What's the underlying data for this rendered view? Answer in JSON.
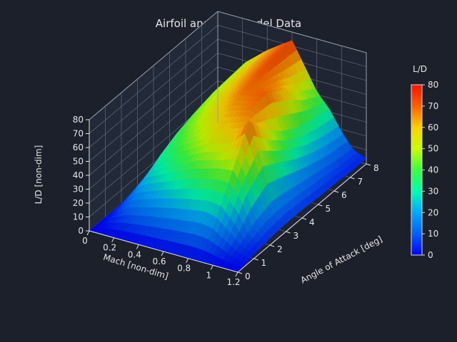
{
  "chart_data": {
    "type": "surface3d",
    "title": "Airfoil and Stall Model Data",
    "xlabel": "Mach [non-dim]",
    "ylabel": "Angle of Attack [deg]",
    "zlabel": "L/D [non-dim]",
    "colorbar_label": "L/D",
    "xlim": [
      0,
      1.2
    ],
    "ylim": [
      0,
      8
    ],
    "zlim": [
      0,
      80
    ],
    "x_ticks": [
      "0",
      "0.2",
      "0.4",
      "0.6",
      "0.8",
      "1",
      "1.2"
    ],
    "y_ticks": [
      "0",
      "1",
      "2",
      "3",
      "4",
      "5",
      "6",
      "7",
      "8"
    ],
    "z_ticks": [
      "0",
      "10",
      "20",
      "30",
      "40",
      "50",
      "60",
      "70",
      "80"
    ],
    "colorbar_ticks": [
      "0",
      "10",
      "20",
      "30",
      "40",
      "50",
      "60",
      "70",
      "80"
    ],
    "colormap": "jet",
    "colorbar_range": [
      0,
      80
    ],
    "mach": [
      0,
      0.2,
      0.4,
      0.6,
      0.8,
      0.9,
      1.0,
      1.1,
      1.2
    ],
    "alpha": [
      0,
      1,
      2,
      3,
      4,
      5,
      6,
      7,
      8
    ],
    "ld_values": [
      [
        0,
        0,
        0,
        0,
        0,
        0,
        0,
        0,
        0
      ],
      [
        0,
        12,
        24,
        32,
        38,
        42,
        45,
        46,
        47
      ],
      [
        0,
        17,
        32,
        43,
        51,
        56,
        59,
        61,
        62
      ],
      [
        0,
        21,
        40,
        54,
        62,
        68,
        71,
        73,
        74
      ],
      [
        0,
        24,
        45,
        60,
        68,
        70,
        62,
        50,
        42
      ],
      [
        0,
        22,
        46,
        72,
        56,
        45,
        38,
        34,
        32
      ],
      [
        0,
        14,
        34,
        46,
        38,
        30,
        24,
        20,
        18
      ],
      [
        0,
        6,
        12,
        15,
        14,
        12,
        10,
        8,
        7
      ],
      [
        0,
        3,
        5,
        6,
        6,
        5,
        5,
        4,
        4
      ]
    ],
    "grid": true
  }
}
